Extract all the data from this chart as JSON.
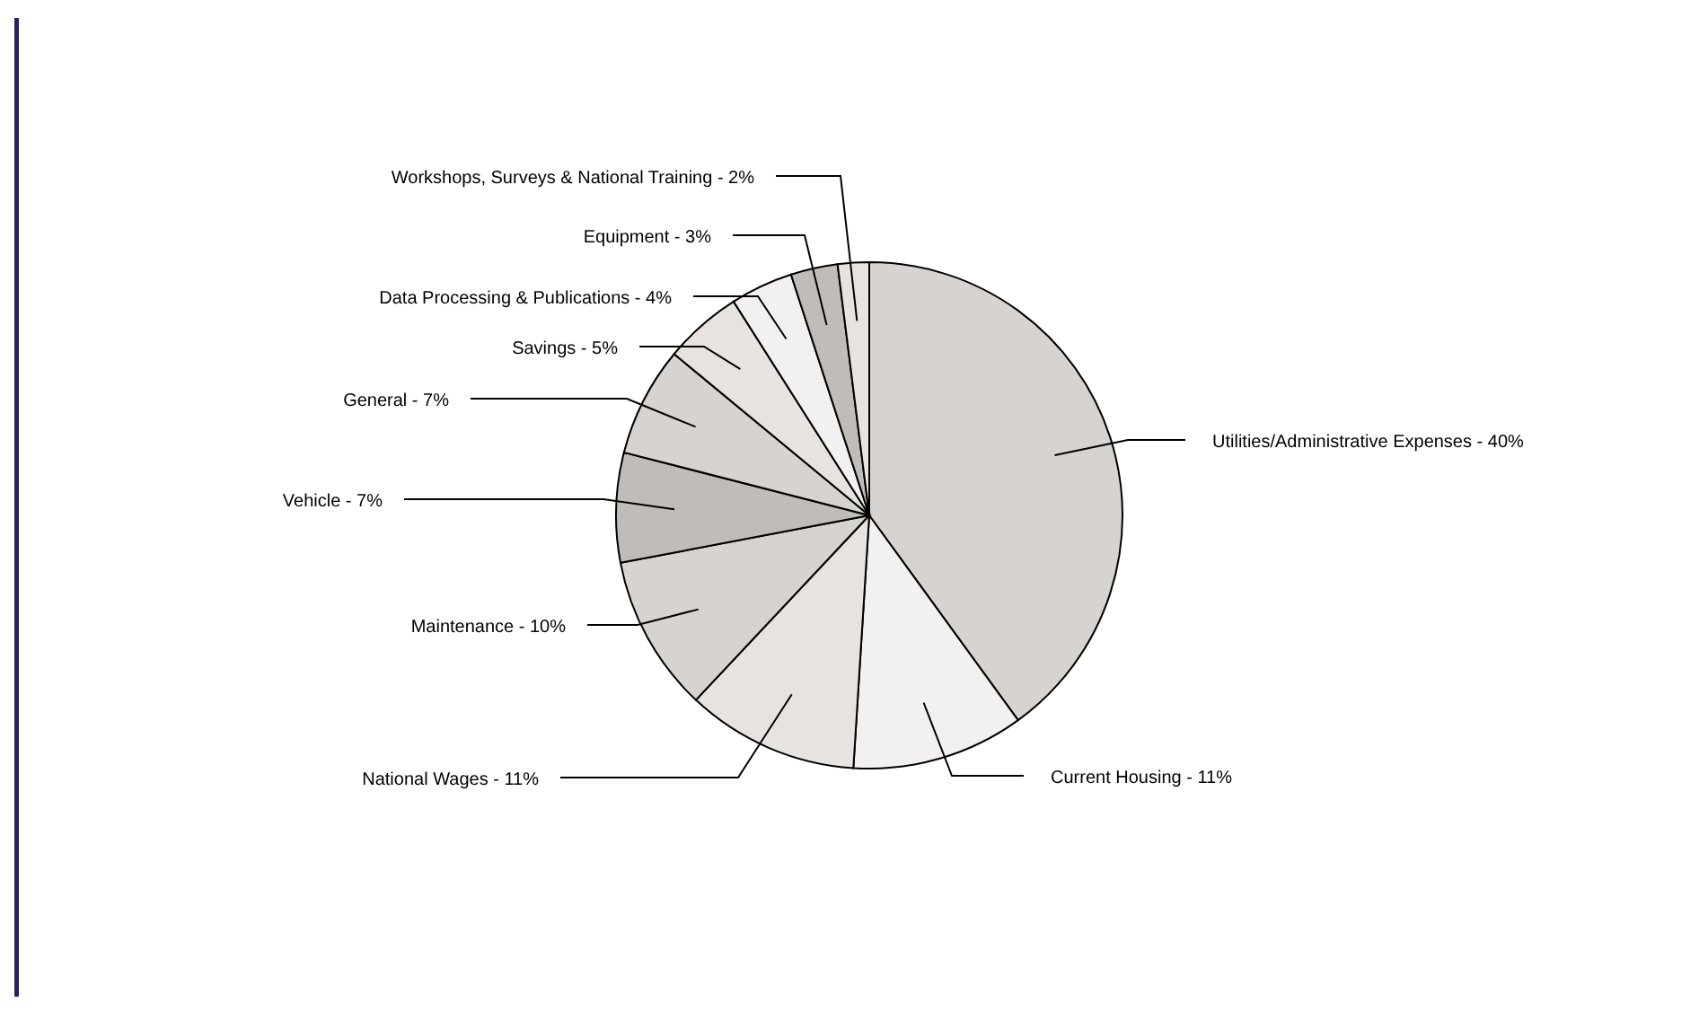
{
  "chart_data": {
    "type": "pie",
    "categories": [
      "Utilities/Administrative Expenses",
      "Current Housing",
      "National Wages",
      "Maintenance",
      "Vehicle",
      "General",
      "Savings",
      "Data Processing & Publications",
      "Equipment",
      "Workshops, Surveys & National Training"
    ],
    "values": [
      40,
      11,
      11,
      10,
      7,
      7,
      5,
      4,
      3,
      2
    ],
    "value_labels": [
      "40%",
      "11%",
      "11%",
      "10%",
      "7%",
      "7%",
      "5%",
      "4%",
      "3%",
      "2%"
    ],
    "colors": [
      "#d6d3d0",
      "#f2f0f0",
      "#e6e3e0",
      "#d6d3d0",
      "#c0bcb8",
      "#d6d3d0",
      "#e6e3e0",
      "#f2f0f0",
      "#c0bcb8",
      "#e6e3e0"
    ]
  }
}
